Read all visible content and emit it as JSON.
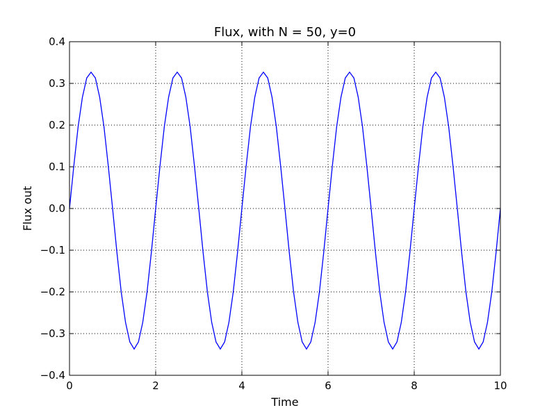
{
  "chart_data": {
    "type": "line",
    "title": "Flux, with N = 50, y=0",
    "xlabel": "Time",
    "ylabel": "Flux out",
    "xlim": [
      0,
      10
    ],
    "ylim": [
      -0.4,
      0.4
    ],
    "xticks": [
      0,
      2,
      4,
      6,
      8,
      10
    ],
    "xtick_labels": [
      "0",
      "2",
      "4",
      "6",
      "8",
      "10"
    ],
    "yticks": [
      -0.4,
      -0.3,
      -0.2,
      -0.1,
      0.0,
      0.1,
      0.2,
      0.3,
      0.4
    ],
    "ytick_labels": [
      "−0.4",
      "−0.3",
      "−0.2",
      "−0.1",
      "0.0",
      "0.1",
      "0.2",
      "0.3",
      "0.4"
    ],
    "grid": true,
    "series": [
      {
        "color": "#0000ff",
        "x": [
          0,
          0.1,
          0.2,
          0.3,
          0.4,
          0.5,
          0.6,
          0.7,
          0.8,
          0.9,
          1.0,
          1.1,
          1.2,
          1.3,
          1.4,
          1.5,
          1.6,
          1.7,
          1.8,
          1.9,
          2.0,
          2.1,
          2.2,
          2.3,
          2.4,
          2.5,
          2.6,
          2.7,
          2.8,
          2.9,
          3.0,
          3.1,
          3.2,
          3.3,
          3.4,
          3.5,
          3.6,
          3.7,
          3.8,
          3.9,
          4.0,
          4.1,
          4.2,
          4.3,
          4.4,
          4.5,
          4.6,
          4.7,
          4.8,
          4.9,
          5.0,
          5.1,
          5.2,
          5.3,
          5.4,
          5.5,
          5.6,
          5.7,
          5.8,
          5.9,
          6.0,
          6.1,
          6.2,
          6.3,
          6.4,
          6.5,
          6.6,
          6.7,
          6.8,
          6.9,
          7.0,
          7.1,
          7.2,
          7.3,
          7.4,
          7.5,
          7.6,
          7.7,
          7.8,
          7.9,
          8.0,
          8.1,
          8.2,
          8.3,
          8.4,
          8.5,
          8.6,
          8.7,
          8.8,
          8.9,
          9.0,
          9.1,
          9.2,
          9.3,
          9.4,
          9.5,
          9.6,
          9.7,
          9.8,
          9.9,
          10.0
        ],
        "y": [
          0.0,
          0.102,
          0.196,
          0.267,
          0.313,
          0.327,
          0.313,
          0.267,
          0.196,
          0.102,
          0.0,
          -0.105,
          -0.2,
          -0.273,
          -0.32,
          -0.337,
          -0.32,
          -0.273,
          -0.2,
          -0.105,
          0.0,
          0.102,
          0.196,
          0.267,
          0.313,
          0.327,
          0.313,
          0.267,
          0.196,
          0.102,
          0.0,
          -0.105,
          -0.2,
          -0.273,
          -0.32,
          -0.337,
          -0.32,
          -0.273,
          -0.2,
          -0.105,
          0.0,
          0.102,
          0.196,
          0.267,
          0.313,
          0.327,
          0.313,
          0.267,
          0.196,
          0.102,
          0.0,
          -0.105,
          -0.2,
          -0.273,
          -0.32,
          -0.337,
          -0.32,
          -0.273,
          -0.2,
          -0.105,
          0.0,
          0.102,
          0.196,
          0.267,
          0.313,
          0.327,
          0.313,
          0.267,
          0.196,
          0.102,
          0.0,
          -0.105,
          -0.2,
          -0.273,
          -0.32,
          -0.337,
          -0.32,
          -0.273,
          -0.2,
          -0.105,
          0.0,
          0.102,
          0.196,
          0.267,
          0.313,
          0.327,
          0.313,
          0.267,
          0.196,
          0.102,
          0.0,
          -0.105,
          -0.2,
          -0.273,
          -0.32,
          -0.337,
          -0.32,
          -0.273,
          -0.2,
          -0.105,
          0.0
        ]
      }
    ]
  }
}
